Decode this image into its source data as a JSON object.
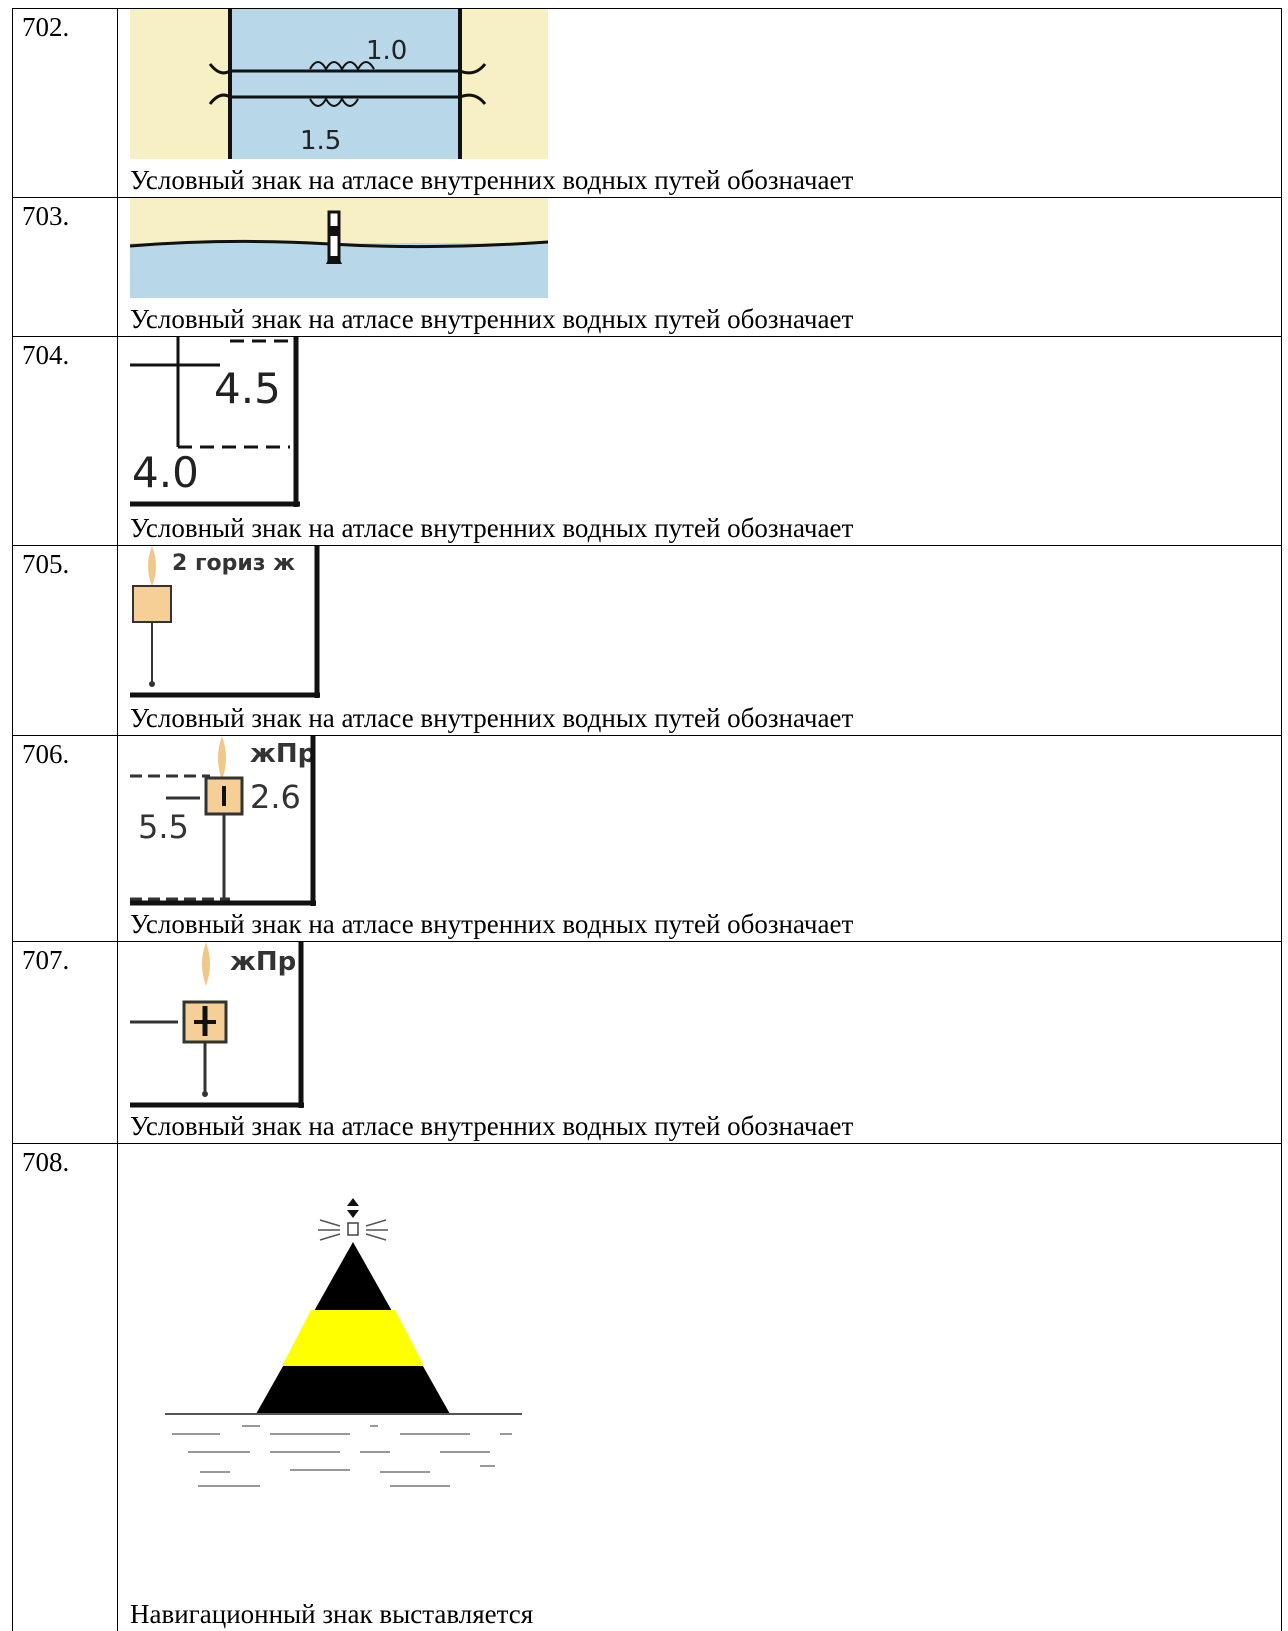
{
  "rows": [
    {
      "number": "702.",
      "image_labels": [
        "1.0",
        "1.5"
      ],
      "caption": "Условный знак на атласе внутренних водных путей обозначает"
    },
    {
      "number": "703.",
      "caption": "Условный знак на атласе внутренних водных путей обозначает"
    },
    {
      "number": "704.",
      "image_labels": [
        "4.5",
        "4.0"
      ],
      "caption": "Условный знак на атласе внутренних водных путей обозначает"
    },
    {
      "number": "705.",
      "image_labels": [
        "2 гориз ж"
      ],
      "caption": "Условный знак на атласе внутренних водных путей обозначает"
    },
    {
      "number": "706.",
      "image_labels": [
        "жПр",
        "2.6",
        "5.5"
      ],
      "caption": "Условный знак на атласе внутренних водных путей обозначает"
    },
    {
      "number": "707.",
      "image_labels": [
        "жПр"
      ],
      "caption": "Условный знак на атласе внутренних водных путей обозначает"
    },
    {
      "number": "708.",
      "caption": "Навигационный знак выставляется"
    }
  ]
}
